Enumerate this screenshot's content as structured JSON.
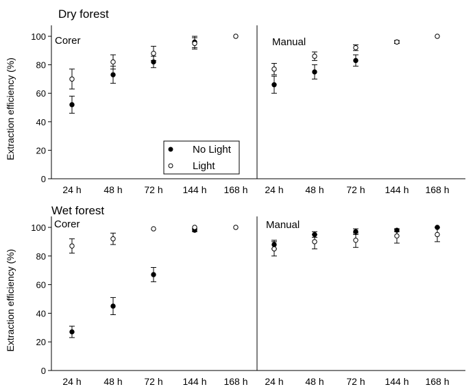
{
  "chart_data": [
    {
      "type": "scatter",
      "section_title": "Dry forest",
      "panel_label": "Corer",
      "ylabel": "Extraction efficiency (%)",
      "xlabel": "",
      "categories": [
        "24 h",
        "48 h",
        "72 h",
        "144 h",
        "168 h"
      ],
      "ylim": [
        0,
        100
      ],
      "yticks": [
        0,
        20,
        40,
        60,
        80,
        100
      ],
      "legend": {
        "position": "bottom-right",
        "entries": [
          "No Light",
          "Light"
        ]
      },
      "series": [
        {
          "name": "No Light",
          "marker": "filled",
          "values": [
            52,
            73,
            82,
            96,
            null
          ],
          "errors": [
            6,
            6,
            4,
            4,
            null
          ]
        },
        {
          "name": "Light",
          "marker": "open",
          "values": [
            70,
            82,
            88,
            95,
            100
          ],
          "errors": [
            7,
            5,
            5,
            4,
            0
          ]
        }
      ]
    },
    {
      "type": "scatter",
      "panel_label": "Manual",
      "categories": [
        "24 h",
        "48 h",
        "72 h",
        "144 h",
        "168 h"
      ],
      "ylim": [
        0,
        100
      ],
      "series": [
        {
          "name": "No Light",
          "marker": "filled",
          "values": [
            66,
            75,
            83,
            96,
            null
          ],
          "errors": [
            6,
            5,
            4,
            1,
            null
          ]
        },
        {
          "name": "Light",
          "marker": "open",
          "values": [
            77,
            86,
            92,
            96,
            100
          ],
          "errors": [
            4,
            3,
            2,
            1,
            0
          ]
        }
      ]
    },
    {
      "type": "scatter",
      "section_title": "Wet forest",
      "panel_label": "Corer",
      "ylabel": "Extraction efficiency (%)",
      "categories": [
        "24 h",
        "48 h",
        "72 h",
        "144 h",
        "168 h"
      ],
      "ylim": [
        0,
        100
      ],
      "yticks": [
        0,
        20,
        40,
        60,
        80,
        100
      ],
      "series": [
        {
          "name": "No Light",
          "marker": "filled",
          "values": [
            27,
            45,
            67,
            98,
            null
          ],
          "errors": [
            4,
            6,
            5,
            1,
            null
          ]
        },
        {
          "name": "Light",
          "marker": "open",
          "values": [
            87,
            92,
            99,
            100,
            100
          ],
          "errors": [
            5,
            4,
            0,
            0,
            0
          ]
        }
      ]
    },
    {
      "type": "scatter",
      "panel_label": "Manual",
      "categories": [
        "24 h",
        "48 h",
        "72 h",
        "144 h",
        "168 h"
      ],
      "ylim": [
        0,
        100
      ],
      "series": [
        {
          "name": "No Light",
          "marker": "filled",
          "values": [
            88,
            95,
            97,
            98,
            100
          ],
          "errors": [
            3,
            2,
            2,
            1,
            0
          ]
        },
        {
          "name": "Light",
          "marker": "open",
          "values": [
            85,
            90,
            91,
            94,
            95
          ],
          "errors": [
            5,
            5,
            5,
            5,
            5
          ]
        }
      ]
    }
  ]
}
